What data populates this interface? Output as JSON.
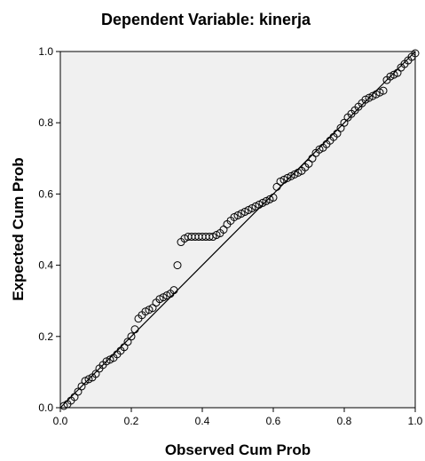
{
  "chart_data": {
    "type": "scatter",
    "title": "Dependent Variable: kinerja",
    "xlabel": "Observed Cum Prob",
    "ylabel": "Expected Cum Prob",
    "xlim": [
      0,
      1
    ],
    "ylim": [
      0,
      1
    ],
    "xticks": [
      "0.0",
      "0.2",
      "0.4",
      "0.6",
      "0.8",
      "1.0"
    ],
    "yticks": [
      "0.0",
      "0.2",
      "0.4",
      "0.6",
      "0.8",
      "1.0"
    ],
    "grid": false,
    "plot_background": "#f0f0f0",
    "reference_line": [
      [
        0,
        0
      ],
      [
        1,
        1
      ]
    ],
    "series": [
      {
        "marker": "open-circle",
        "color": "#000000",
        "points": [
          [
            0.01,
            0.005
          ],
          [
            0.02,
            0.01
          ],
          [
            0.03,
            0.02
          ],
          [
            0.04,
            0.03
          ],
          [
            0.05,
            0.045
          ],
          [
            0.06,
            0.06
          ],
          [
            0.07,
            0.075
          ],
          [
            0.08,
            0.08
          ],
          [
            0.09,
            0.085
          ],
          [
            0.1,
            0.095
          ],
          [
            0.11,
            0.11
          ],
          [
            0.12,
            0.12
          ],
          [
            0.13,
            0.13
          ],
          [
            0.14,
            0.135
          ],
          [
            0.15,
            0.14
          ],
          [
            0.16,
            0.15
          ],
          [
            0.17,
            0.16
          ],
          [
            0.18,
            0.17
          ],
          [
            0.19,
            0.185
          ],
          [
            0.2,
            0.2
          ],
          [
            0.21,
            0.22
          ],
          [
            0.22,
            0.25
          ],
          [
            0.23,
            0.26
          ],
          [
            0.24,
            0.27
          ],
          [
            0.25,
            0.275
          ],
          [
            0.26,
            0.28
          ],
          [
            0.27,
            0.295
          ],
          [
            0.28,
            0.305
          ],
          [
            0.29,
            0.31
          ],
          [
            0.3,
            0.315
          ],
          [
            0.31,
            0.32
          ],
          [
            0.32,
            0.33
          ],
          [
            0.33,
            0.4
          ],
          [
            0.34,
            0.465
          ],
          [
            0.35,
            0.475
          ],
          [
            0.36,
            0.48
          ],
          [
            0.37,
            0.48
          ],
          [
            0.38,
            0.48
          ],
          [
            0.39,
            0.48
          ],
          [
            0.4,
            0.48
          ],
          [
            0.41,
            0.48
          ],
          [
            0.42,
            0.48
          ],
          [
            0.43,
            0.48
          ],
          [
            0.44,
            0.485
          ],
          [
            0.45,
            0.49
          ],
          [
            0.46,
            0.5
          ],
          [
            0.47,
            0.515
          ],
          [
            0.48,
            0.525
          ],
          [
            0.49,
            0.535
          ],
          [
            0.5,
            0.54
          ],
          [
            0.51,
            0.545
          ],
          [
            0.52,
            0.55
          ],
          [
            0.53,
            0.555
          ],
          [
            0.54,
            0.56
          ],
          [
            0.55,
            0.565
          ],
          [
            0.56,
            0.57
          ],
          [
            0.57,
            0.575
          ],
          [
            0.58,
            0.58
          ],
          [
            0.59,
            0.585
          ],
          [
            0.6,
            0.59
          ],
          [
            0.61,
            0.62
          ],
          [
            0.62,
            0.635
          ],
          [
            0.63,
            0.64
          ],
          [
            0.64,
            0.645
          ],
          [
            0.65,
            0.65
          ],
          [
            0.66,
            0.655
          ],
          [
            0.67,
            0.66
          ],
          [
            0.68,
            0.665
          ],
          [
            0.69,
            0.675
          ],
          [
            0.7,
            0.685
          ],
          [
            0.71,
            0.7
          ],
          [
            0.72,
            0.715
          ],
          [
            0.73,
            0.725
          ],
          [
            0.74,
            0.73
          ],
          [
            0.75,
            0.74
          ],
          [
            0.76,
            0.75
          ],
          [
            0.77,
            0.76
          ],
          [
            0.78,
            0.77
          ],
          [
            0.79,
            0.785
          ],
          [
            0.8,
            0.8
          ],
          [
            0.81,
            0.815
          ],
          [
            0.82,
            0.825
          ],
          [
            0.83,
            0.835
          ],
          [
            0.84,
            0.845
          ],
          [
            0.85,
            0.855
          ],
          [
            0.86,
            0.865
          ],
          [
            0.87,
            0.87
          ],
          [
            0.88,
            0.875
          ],
          [
            0.89,
            0.88
          ],
          [
            0.9,
            0.885
          ],
          [
            0.91,
            0.89
          ],
          [
            0.92,
            0.92
          ],
          [
            0.93,
            0.93
          ],
          [
            0.94,
            0.935
          ],
          [
            0.95,
            0.94
          ],
          [
            0.96,
            0.955
          ],
          [
            0.97,
            0.965
          ],
          [
            0.98,
            0.975
          ],
          [
            0.99,
            0.985
          ],
          [
            1.0,
            0.995
          ]
        ]
      }
    ]
  }
}
